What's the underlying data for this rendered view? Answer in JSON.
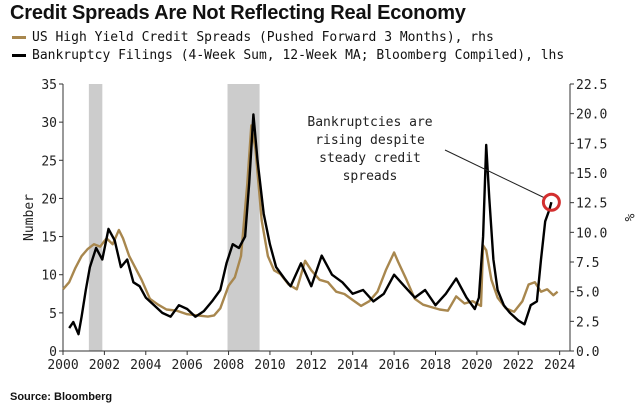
{
  "title": "Credit Spreads Are Not Reflecting Real Economy",
  "legend": [
    {
      "name": "US High Yield Credit Spreads (Pushed Forward 3 Months), rhs",
      "color": "#a8874e"
    },
    {
      "name": "Bankruptcy Filings (4-Week Sum, 12-Week MA; Bloomberg Compiled), lhs",
      "color": "#000000"
    }
  ],
  "source": "Source: Bloomberg",
  "annotation": "Bankruptcies are rising despite steady credit spreads",
  "annotation_lines": [
    "Bankruptcies are",
    "rising despite",
    "steady credit",
    "spreads"
  ],
  "chart_data": {
    "type": "line",
    "ylabel": "Number",
    "y2label": "%",
    "xlim": [
      2000,
      2024.5
    ],
    "ylim": [
      0,
      35
    ],
    "y2lim": [
      0,
      22.5
    ],
    "x_ticks": [
      "2000",
      "2002",
      "2004",
      "2006",
      "2008",
      "2010",
      "2012",
      "2014",
      "2016",
      "2018",
      "2020",
      "2022",
      "2024"
    ],
    "y_ticks": [
      "0",
      "5",
      "10",
      "15",
      "20",
      "25",
      "30",
      "35"
    ],
    "y2_ticks": [
      "0.0",
      "2.5",
      "5.0",
      "7.5",
      "10.0",
      "12.5",
      "15.0",
      "17.5",
      "20.0",
      "22.5"
    ],
    "recessions": [
      [
        2001.25,
        2001.9
      ],
      [
        2007.95,
        2009.5
      ]
    ],
    "series": [
      {
        "name": "US High Yield Credit Spreads (Pushed Forward 3 Months), rhs",
        "axis": "right",
        "color": "#a8874e",
        "x": [
          2000.0,
          2000.3,
          2000.6,
          2000.9,
          2001.2,
          2001.5,
          2001.8,
          2002.1,
          2002.4,
          2002.7,
          2002.9,
          2003.2,
          2003.5,
          2003.8,
          2004.2,
          2004.6,
          2005.0,
          2005.5,
          2006.0,
          2006.5,
          2007.0,
          2007.3,
          2007.6,
          2008.0,
          2008.3,
          2008.6,
          2008.9,
          2009.1,
          2009.3,
          2009.6,
          2009.9,
          2010.2,
          2010.5,
          2010.9,
          2011.3,
          2011.7,
          2012.0,
          2012.4,
          2012.8,
          2013.2,
          2013.6,
          2014.0,
          2014.4,
          2014.8,
          2015.2,
          2015.6,
          2016.0,
          2016.2,
          2016.6,
          2017.0,
          2017.4,
          2017.8,
          2018.2,
          2018.6,
          2019.0,
          2019.4,
          2019.8,
          2020.2,
          2020.3,
          2020.45,
          2020.7,
          2021.0,
          2021.4,
          2021.8,
          2022.2,
          2022.5,
          2022.8,
          2023.1,
          2023.4,
          2023.7,
          2023.9
        ],
        "values": [
          5.2,
          5.8,
          7.0,
          8.0,
          8.6,
          9.0,
          8.8,
          9.5,
          9.0,
          10.2,
          9.5,
          8.0,
          7.0,
          6.0,
          4.4,
          3.9,
          3.5,
          3.4,
          3.1,
          3.0,
          2.9,
          3.0,
          3.6,
          5.5,
          6.2,
          8.0,
          14.0,
          19.0,
          17.0,
          11.0,
          8.0,
          6.8,
          6.5,
          5.6,
          5.2,
          7.6,
          6.8,
          6.0,
          5.8,
          5.0,
          4.8,
          4.3,
          3.8,
          4.2,
          5.0,
          6.8,
          8.3,
          7.5,
          6.0,
          4.4,
          3.9,
          3.7,
          3.5,
          3.4,
          4.6,
          4.0,
          4.2,
          3.8,
          8.9,
          8.5,
          6.0,
          4.5,
          3.6,
          3.3,
          4.2,
          5.6,
          5.8,
          5.0,
          5.2,
          4.7,
          5.0
        ]
      },
      {
        "name": "Bankruptcy Filings (4-Week Sum, 12-Week MA; Bloomberg Compiled), lhs",
        "axis": "left",
        "color": "#000000",
        "x": [
          2000.3,
          2000.5,
          2000.75,
          2000.9,
          2001.1,
          2001.3,
          2001.6,
          2001.9,
          2002.2,
          2002.5,
          2002.8,
          2003.1,
          2003.4,
          2003.7,
          2004.0,
          2004.4,
          2004.8,
          2005.2,
          2005.6,
          2006.0,
          2006.4,
          2006.8,
          2007.2,
          2007.6,
          2007.9,
          2008.2,
          2008.5,
          2008.8,
          2009.0,
          2009.2,
          2009.4,
          2009.7,
          2010.0,
          2010.3,
          2010.7,
          2011.0,
          2011.5,
          2012.0,
          2012.5,
          2013.0,
          2013.5,
          2014.0,
          2014.5,
          2015.0,
          2015.5,
          2016.0,
          2016.5,
          2017.0,
          2017.5,
          2018.0,
          2018.5,
          2019.0,
          2019.5,
          2019.9,
          2020.1,
          2020.3,
          2020.45,
          2020.6,
          2020.8,
          2021.0,
          2021.3,
          2021.6,
          2022.0,
          2022.3,
          2022.6,
          2022.9,
          2023.1,
          2023.3,
          2023.5,
          2023.6
        ],
        "values": [
          3.0,
          3.8,
          2.2,
          4.5,
          8.0,
          11.0,
          13.5,
          12.0,
          16.0,
          14.5,
          11.0,
          12.0,
          9.0,
          8.5,
          7.0,
          6.0,
          5.0,
          4.5,
          6.0,
          5.5,
          4.5,
          5.2,
          6.5,
          8.0,
          11.5,
          14.0,
          13.5,
          15.0,
          22.0,
          31.0,
          25.0,
          18.0,
          14.0,
          11.0,
          9.5,
          8.5,
          11.5,
          8.5,
          12.5,
          10.0,
          9.0,
          7.5,
          8.0,
          6.5,
          7.5,
          10.0,
          8.5,
          7.0,
          8.0,
          6.0,
          7.5,
          9.5,
          7.0,
          5.5,
          7.0,
          15.0,
          27.0,
          20.0,
          12.0,
          8.0,
          6.0,
          5.0,
          4.0,
          3.5,
          6.0,
          6.5,
          12.0,
          17.0,
          18.5,
          19.5
        ]
      }
    ]
  }
}
